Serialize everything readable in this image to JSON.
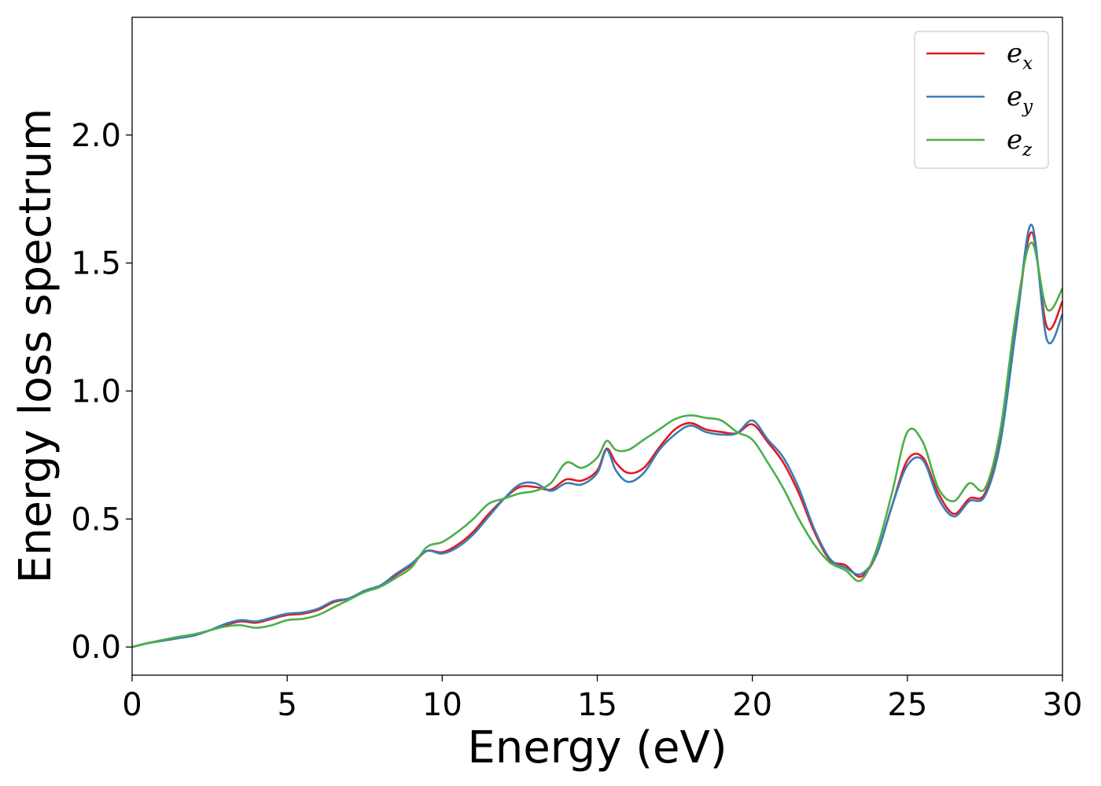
{
  "chart_data": {
    "type": "line",
    "xlabel": "Energy (eV)",
    "ylabel": "Energy loss spectrum",
    "xlim": [
      0,
      30
    ],
    "ylim": [
      -0.11,
      2.46
    ],
    "xticks": [
      0,
      5,
      10,
      15,
      20,
      25,
      30
    ],
    "xtick_labels": [
      "0",
      "5",
      "10",
      "15",
      "20",
      "25",
      "30"
    ],
    "yticks": [
      0,
      0.5,
      1,
      1.5,
      2
    ],
    "ytick_labels": [
      "0.0",
      "0.5",
      "1.0",
      "1.5",
      "2.0"
    ],
    "grid": false,
    "legend_position": "top-right",
    "series": [
      {
        "name": "e_x",
        "base": "e",
        "sub": "x",
        "color": "#e41a1c",
        "x": [
          0,
          0.5,
          1,
          1.5,
          2,
          2.5,
          3,
          3.5,
          4,
          4.5,
          5,
          5.5,
          6,
          6.5,
          7,
          7.5,
          8,
          8.5,
          9,
          9.5,
          10,
          10.5,
          11,
          11.5,
          12,
          12.5,
          13,
          13.5,
          14,
          14.5,
          15,
          15.3,
          15.6,
          16,
          16.5,
          17,
          17.5,
          18,
          18.5,
          19,
          19.5,
          20,
          20.5,
          21,
          21.5,
          22,
          22.5,
          23,
          23.5,
          24,
          24.5,
          25,
          25.5,
          26,
          26.5,
          27,
          27.5,
          28,
          28.5,
          29,
          29.5,
          30
        ],
        "y": [
          0,
          0.015,
          0.025,
          0.035,
          0.045,
          0.065,
          0.085,
          0.1,
          0.095,
          0.11,
          0.125,
          0.13,
          0.145,
          0.175,
          0.19,
          0.22,
          0.24,
          0.28,
          0.32,
          0.375,
          0.37,
          0.4,
          0.45,
          0.52,
          0.58,
          0.625,
          0.625,
          0.615,
          0.655,
          0.65,
          0.69,
          0.775,
          0.72,
          0.68,
          0.7,
          0.78,
          0.85,
          0.875,
          0.85,
          0.84,
          0.835,
          0.87,
          0.8,
          0.72,
          0.6,
          0.45,
          0.34,
          0.32,
          0.275,
          0.36,
          0.55,
          0.73,
          0.74,
          0.6,
          0.52,
          0.58,
          0.6,
          0.82,
          1.25,
          1.62,
          1.25,
          1.35
        ]
      },
      {
        "name": "e_y",
        "base": "e",
        "sub": "y",
        "color": "#377eb8",
        "x": [
          0,
          0.5,
          1,
          1.5,
          2,
          2.5,
          3,
          3.5,
          4,
          4.5,
          5,
          5.5,
          6,
          6.5,
          7,
          7.5,
          8,
          8.5,
          9,
          9.5,
          10,
          10.5,
          11,
          11.5,
          12,
          12.5,
          13,
          13.5,
          14,
          14.5,
          15,
          15.3,
          15.6,
          16,
          16.5,
          17,
          17.5,
          18,
          18.5,
          19,
          19.5,
          20,
          20.5,
          21,
          21.5,
          22,
          22.5,
          23,
          23.5,
          24,
          24.5,
          25,
          25.5,
          26,
          26.5,
          27,
          27.5,
          28,
          28.5,
          29,
          29.5,
          30
        ],
        "y": [
          0,
          0.015,
          0.025,
          0.035,
          0.045,
          0.065,
          0.09,
          0.105,
          0.1,
          0.115,
          0.13,
          0.135,
          0.15,
          0.18,
          0.19,
          0.22,
          0.24,
          0.285,
          0.325,
          0.375,
          0.365,
          0.39,
          0.44,
          0.51,
          0.58,
          0.635,
          0.64,
          0.61,
          0.64,
          0.635,
          0.68,
          0.77,
          0.69,
          0.645,
          0.68,
          0.77,
          0.83,
          0.865,
          0.84,
          0.83,
          0.835,
          0.885,
          0.81,
          0.74,
          0.62,
          0.46,
          0.345,
          0.31,
          0.285,
          0.36,
          0.55,
          0.71,
          0.73,
          0.58,
          0.51,
          0.57,
          0.59,
          0.8,
          1.24,
          1.65,
          1.2,
          1.3
        ]
      },
      {
        "name": "e_z",
        "base": "e",
        "sub": "z",
        "color": "#4daf4a",
        "x": [
          0,
          0.5,
          1,
          1.5,
          2,
          2.5,
          3,
          3.5,
          4,
          4.5,
          5,
          5.5,
          6,
          6.5,
          7,
          7.5,
          8,
          8.5,
          9,
          9.5,
          10,
          10.5,
          11,
          11.5,
          12,
          12.5,
          13,
          13.5,
          14,
          14.5,
          15,
          15.3,
          15.6,
          16,
          16.5,
          17,
          17.5,
          18,
          18.5,
          19,
          19.5,
          20,
          20.5,
          21,
          21.5,
          22,
          22.5,
          23,
          23.5,
          24,
          24.5,
          25,
          25.5,
          26,
          26.5,
          27,
          27.5,
          28,
          28.5,
          29,
          29.5,
          30
        ],
        "y": [
          0,
          0.015,
          0.028,
          0.04,
          0.05,
          0.065,
          0.08,
          0.085,
          0.075,
          0.085,
          0.105,
          0.11,
          0.125,
          0.155,
          0.185,
          0.215,
          0.235,
          0.27,
          0.31,
          0.39,
          0.41,
          0.45,
          0.5,
          0.56,
          0.58,
          0.6,
          0.61,
          0.64,
          0.72,
          0.7,
          0.74,
          0.805,
          0.77,
          0.77,
          0.81,
          0.85,
          0.89,
          0.905,
          0.895,
          0.885,
          0.84,
          0.81,
          0.72,
          0.62,
          0.5,
          0.4,
          0.33,
          0.3,
          0.26,
          0.38,
          0.6,
          0.84,
          0.8,
          0.62,
          0.57,
          0.64,
          0.62,
          0.85,
          1.3,
          1.58,
          1.32,
          1.4
        ]
      }
    ]
  }
}
